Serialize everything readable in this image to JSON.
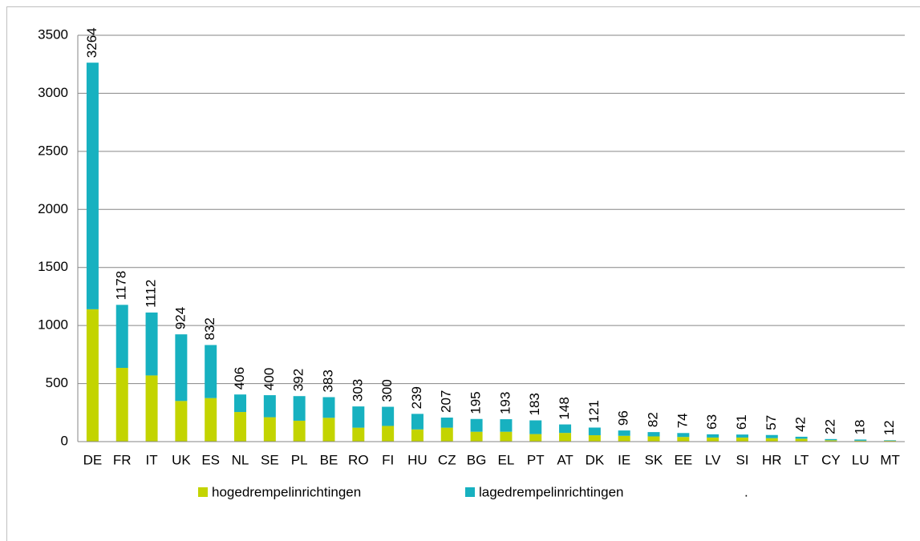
{
  "chart_data": {
    "type": "stacked_bar",
    "categories": [
      "DE",
      "FR",
      "IT",
      "UK",
      "ES",
      "NL",
      "SE",
      "PL",
      "BE",
      "RO",
      "FI",
      "HU",
      "CZ",
      "BG",
      "EL",
      "PT",
      "AT",
      "DK",
      "IE",
      "SK",
      "EE",
      "LV",
      "SI",
      "HR",
      "LT",
      "CY",
      "LU",
      "MT"
    ],
    "series": [
      {
        "name": "hogedrempelinrichtingen",
        "color": "#c3d400",
        "values": [
          1140,
          635,
          570,
          350,
          375,
          255,
          210,
          180,
          205,
          120,
          135,
          105,
          120,
          85,
          85,
          65,
          75,
          55,
          50,
          45,
          40,
          35,
          35,
          30,
          25,
          12,
          8,
          8
        ]
      },
      {
        "name": "lagedrempelinrichtingen",
        "color": "#17b1c0",
        "values": [
          2124,
          543,
          542,
          574,
          457,
          151,
          190,
          212,
          178,
          183,
          165,
          134,
          87,
          110,
          108,
          118,
          73,
          66,
          46,
          37,
          34,
          28,
          26,
          27,
          17,
          10,
          10,
          4
        ]
      }
    ],
    "totals": [
      3264,
      1178,
      1112,
      924,
      832,
      406,
      400,
      392,
      383,
      303,
      300,
      239,
      207,
      195,
      193,
      183,
      148,
      121,
      96,
      82,
      74,
      63,
      61,
      57,
      42,
      22,
      18,
      12
    ],
    "legend_extra": ".",
    "ylim": [
      0,
      3500
    ],
    "yticks": [
      0,
      500,
      1000,
      1500,
      2000,
      2500,
      3000,
      3500
    ],
    "grid": true,
    "legend": "bottom"
  }
}
